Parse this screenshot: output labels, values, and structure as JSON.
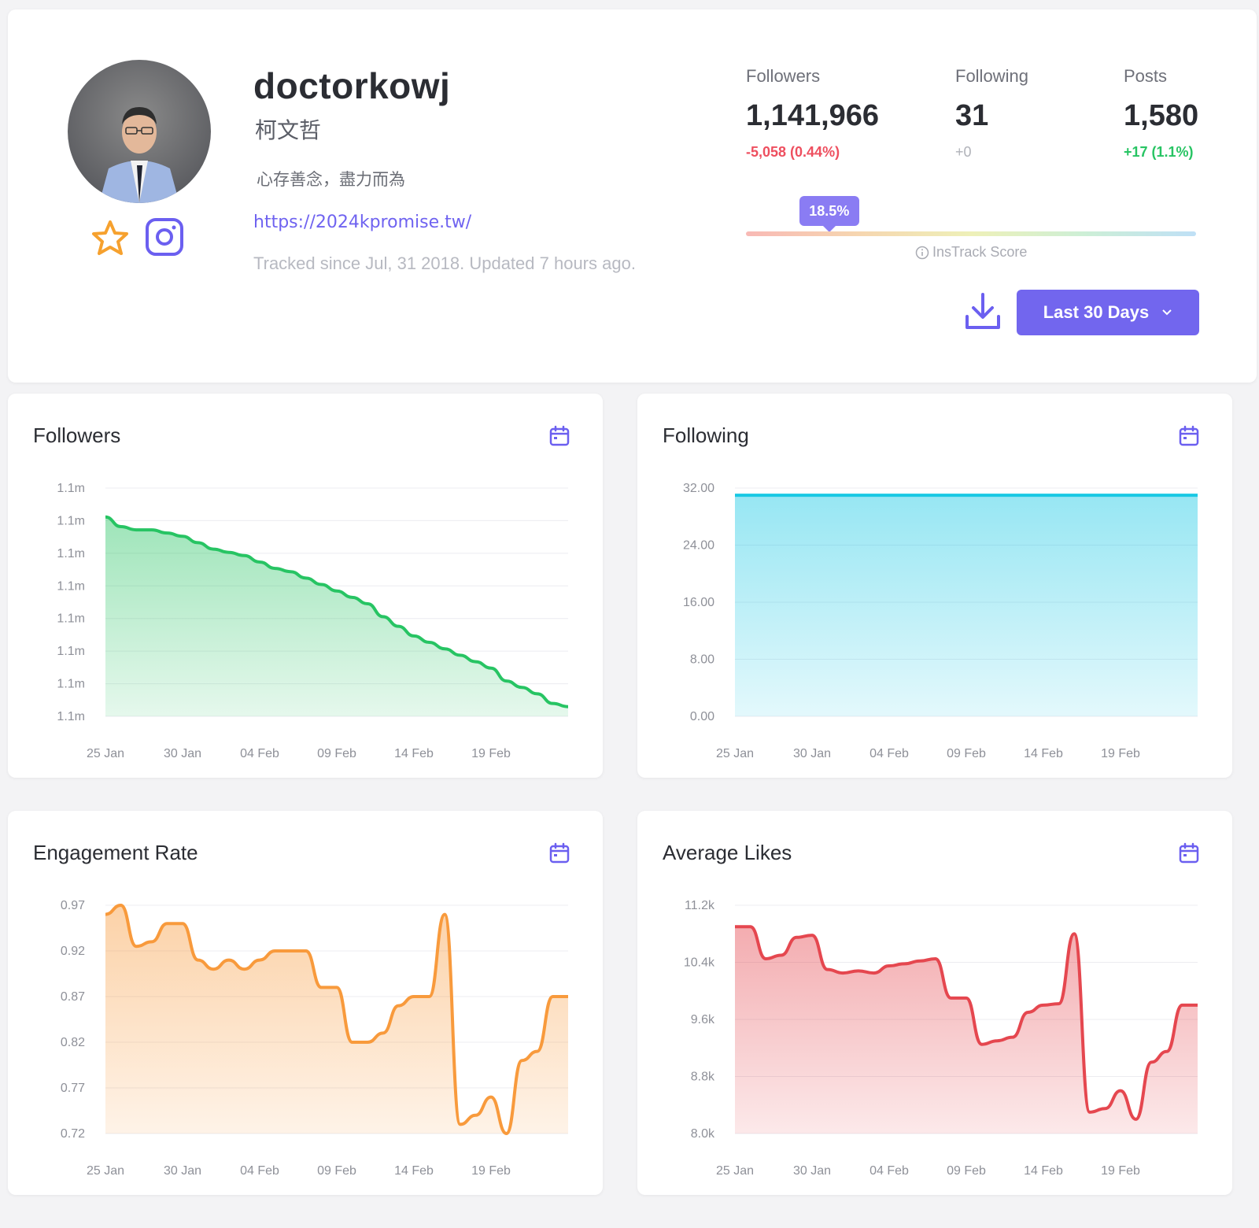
{
  "profile": {
    "username": "doctorkowj",
    "real_name": "柯文哲",
    "bio": "心存善念，盡力而為",
    "website": "https://2024kpromise.tw/",
    "tracked_text": "Tracked since Jul, 31 2018. Updated 7 hours ago."
  },
  "stats": {
    "followers": {
      "label": "Followers",
      "value": "1,141,966",
      "delta": "-5,058 (0.44%)"
    },
    "following": {
      "label": "Following",
      "value": "31",
      "delta": "+0"
    },
    "posts": {
      "label": "Posts",
      "value": "1,580",
      "delta": "+17 (1.1%)"
    }
  },
  "score": {
    "value": "18.5%",
    "level": 0.185,
    "label": "InsTrack Score"
  },
  "controls": {
    "range_label": "Last 30 Days"
  },
  "icons": {
    "favorite": "star-icon",
    "platform": "instagram-icon",
    "download": "download-icon",
    "dropdown": "chevron-down-icon",
    "calendar": "calendar-icon",
    "info": "info-icon"
  },
  "colors": {
    "accent": "#7266ee",
    "followers": "#27c463",
    "following": "#18c8e4",
    "engagement": "#f89a3c",
    "likes": "#e5474f",
    "negative": "#ee4f5f",
    "positive": "#27c463"
  },
  "chart_data": [
    {
      "id": "followers",
      "type": "area",
      "title": "Followers",
      "x_ticks": [
        "25 Jan",
        "30 Jan",
        "04 Feb",
        "09 Feb",
        "14 Feb",
        "19 Feb"
      ],
      "y_ticks": [
        "1.1m",
        "1.1m",
        "1.1m",
        "1.1m",
        "1.1m",
        "1.1m",
        "1.1m",
        "1.1m"
      ],
      "ylim": [
        1140800,
        1147900
      ],
      "series": [
        {
          "values": [
            1147000,
            1146700,
            1146600,
            1146600,
            1146500,
            1146400,
            1146200,
            1146000,
            1145900,
            1145800,
            1145600,
            1145400,
            1145300,
            1145100,
            1144900,
            1144700,
            1144500,
            1144300,
            1143900,
            1143600,
            1143300,
            1143100,
            1142900,
            1142700,
            1142500,
            1142300,
            1141900,
            1141700,
            1141500,
            1141200,
            1141100
          ]
        }
      ]
    },
    {
      "id": "following",
      "type": "area",
      "title": "Following",
      "x_ticks": [
        "25 Jan",
        "30 Jan",
        "04 Feb",
        "09 Feb",
        "14 Feb",
        "19 Feb"
      ],
      "y_ticks": [
        "32.00",
        "24.00",
        "16.00",
        "8.00",
        "0.00"
      ],
      "ylim": [
        0,
        32
      ],
      "series": [
        {
          "values": [
            31,
            31,
            31,
            31,
            31,
            31,
            31,
            31,
            31,
            31,
            31,
            31,
            31,
            31,
            31,
            31,
            31,
            31,
            31,
            31,
            31,
            31,
            31,
            31,
            31,
            31,
            31,
            31,
            31,
            31,
            31
          ]
        }
      ]
    },
    {
      "id": "engagement",
      "type": "area",
      "title": "Engagement Rate",
      "x_ticks": [
        "25 Jan",
        "30 Jan",
        "04 Feb",
        "09 Feb",
        "14 Feb",
        "19 Feb"
      ],
      "y_ticks": [
        "0.97",
        "0.92",
        "0.87",
        "0.82",
        "0.77",
        "0.72"
      ],
      "ylim": [
        0.72,
        0.97
      ],
      "series": [
        {
          "values": [
            0.96,
            0.97,
            0.925,
            0.93,
            0.95,
            0.95,
            0.91,
            0.9,
            0.91,
            0.9,
            0.91,
            0.92,
            0.92,
            0.92,
            0.88,
            0.88,
            0.82,
            0.82,
            0.83,
            0.86,
            0.87,
            0.87,
            0.96,
            0.73,
            0.74,
            0.76,
            0.72,
            0.8,
            0.81,
            0.87,
            0.87
          ]
        }
      ]
    },
    {
      "id": "likes",
      "type": "area",
      "title": "Average Likes",
      "x_ticks": [
        "25 Jan",
        "30 Jan",
        "04 Feb",
        "09 Feb",
        "14 Feb",
        "19 Feb"
      ],
      "y_ticks": [
        "11.2k",
        "10.4k",
        "9.6k",
        "8.8k",
        "8.0k"
      ],
      "ylim": [
        8000,
        11200
      ],
      "series": [
        {
          "values": [
            10900,
            10900,
            10450,
            10500,
            10750,
            10780,
            10300,
            10250,
            10280,
            10250,
            10350,
            10380,
            10420,
            10450,
            9900,
            9900,
            9250,
            9300,
            9350,
            9700,
            9800,
            9820,
            10800,
            8300,
            8350,
            8600,
            8200,
            9000,
            9150,
            9800,
            9800
          ]
        }
      ]
    }
  ]
}
